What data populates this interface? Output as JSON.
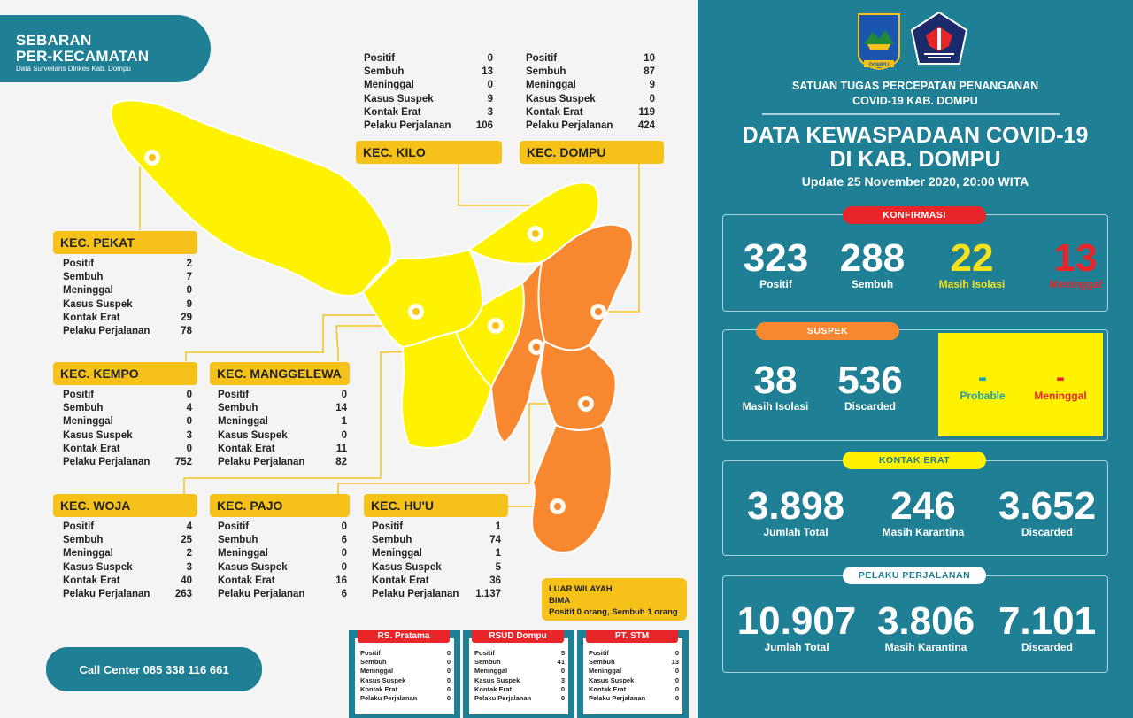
{
  "title": {
    "line1": "SEBARAN",
    "line2": "PER-KECAMATAN",
    "subtitle": "Data Surveilans Dinkes Kab. Dompu"
  },
  "stat_labels": [
    "Positif",
    "Sembuh",
    "Meninggal",
    "Kasus Suspek",
    "Kontak Erat",
    "Pelaku Perjalanan"
  ],
  "districts": {
    "kilo": {
      "name": "KEC. KILO",
      "values": [
        "0",
        "13",
        "0",
        "9",
        "3",
        "106"
      ]
    },
    "dompu": {
      "name": "KEC. DOMPU",
      "values": [
        "10",
        "87",
        "9",
        "0",
        "119",
        "424"
      ]
    },
    "pekat": {
      "name": "KEC. PEKAT",
      "values": [
        "2",
        "7",
        "0",
        "9",
        "29",
        "78"
      ]
    },
    "kempo": {
      "name": "KEC. KEMPO",
      "values": [
        "0",
        "4",
        "0",
        "3",
        "0",
        "752"
      ]
    },
    "manggelewa": {
      "name": "KEC. MANGGELEWA",
      "values": [
        "0",
        "14",
        "1",
        "0",
        "11",
        "82"
      ]
    },
    "woja": {
      "name": "KEC. WOJA",
      "values": [
        "4",
        "25",
        "2",
        "3",
        "40",
        "263"
      ]
    },
    "pajo": {
      "name": "KEC. PAJO",
      "values": [
        "0",
        "6",
        "0",
        "0",
        "16",
        "6"
      ]
    },
    "huu": {
      "name": "KEC. HU'U",
      "values": [
        "1",
        "74",
        "1",
        "5",
        "36",
        "1.137"
      ]
    }
  },
  "luar_wilayah": {
    "line1": "LUAR WILAYAH",
    "line2": "BIMA",
    "line3": "Positif  0 orang, Sembuh 1 orang"
  },
  "facilities": [
    {
      "name": "RS. Pratama",
      "values": [
        "0",
        "0",
        "0",
        "0",
        "0",
        "0"
      ]
    },
    {
      "name": "RSUD Dompu",
      "values": [
        "5",
        "41",
        "0",
        "3",
        "0",
        "0"
      ]
    },
    {
      "name": "PT. STM",
      "values": [
        "0",
        "13",
        "0",
        "0",
        "0",
        "0"
      ]
    }
  ],
  "call_center": "Call Center 085 338 116 661",
  "header": {
    "logo1_text": "DOMPU",
    "task_force_line1": "SATUAN TUGAS PERCEPATAN PENANGANAN",
    "task_force_line2": "COVID-19 KAB. DOMPU",
    "main_title_line1": "DATA KEWASPADAAN COVID-19",
    "main_title_line2": "DI KAB. DOMPU",
    "update": "Update 25  November 2020, 20:00 WITA"
  },
  "konfirmasi": {
    "header": "KONFIRMASI",
    "items": [
      {
        "value": "323",
        "label": "Positif",
        "color": "#ffffff"
      },
      {
        "value": "288",
        "label": "Sembuh",
        "color": "#ffffff"
      },
      {
        "value": "22",
        "label": "Masih Isolasi",
        "color": "#f6e21a"
      },
      {
        "value": "13",
        "label": "Meninggal",
        "color": "#e8262a"
      }
    ]
  },
  "suspek": {
    "header": "SUSPEK",
    "items": [
      {
        "value": "38",
        "label": "Masih Isolasi"
      },
      {
        "value": "536",
        "label": "Discarded"
      }
    ],
    "probable": {
      "value": "-",
      "label": "Probable",
      "color": "#1e9fb5"
    },
    "meninggal": {
      "value": "-",
      "label": "Meninggal",
      "color": "#e8262a"
    }
  },
  "kontak_erat": {
    "header": "KONTAK ERAT",
    "items": [
      {
        "value": "3.898",
        "label": "Jumlah Total"
      },
      {
        "value": "246",
        "label": "Masih Karantina"
      },
      {
        "value": "3.652",
        "label": "Discarded"
      }
    ]
  },
  "pelaku_perjalanan": {
    "header": "PELAKU PERJALANAN",
    "items": [
      {
        "value": "10.907",
        "label": "Jumlah Total"
      },
      {
        "value": "3.806",
        "label": "Masih Karantina"
      },
      {
        "value": "7.101",
        "label": "Discarded"
      }
    ]
  },
  "colors": {
    "teal": "#1e7f95",
    "yellow_label": "#f6c21a",
    "map_yellow": "#fff200",
    "map_orange": "#f7882f",
    "red": "#e8262a"
  }
}
